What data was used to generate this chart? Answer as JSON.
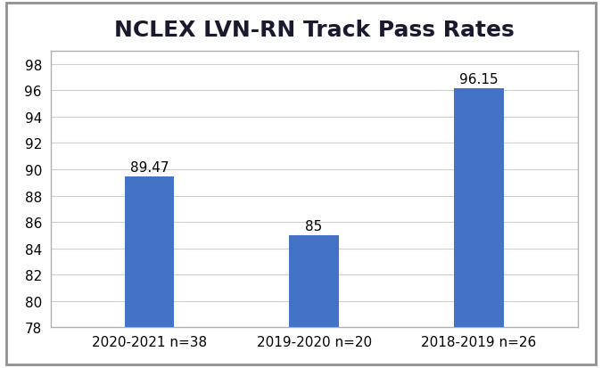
{
  "title": "NCLEX LVN-RN Track Pass Rates",
  "categories": [
    "2020-2021 n=38",
    "2019-2020 n=20",
    "2018-2019 n=26"
  ],
  "values": [
    89.47,
    85,
    96.15
  ],
  "bar_color": "#4472C4",
  "ylim": [
    78,
    99
  ],
  "yticks": [
    78,
    80,
    82,
    84,
    86,
    88,
    90,
    92,
    94,
    96,
    98
  ],
  "title_fontsize": 18,
  "tick_fontsize": 11,
  "label_fontsize": 11,
  "bar_width": 0.3,
  "background_color": "#ffffff",
  "grid_color": "#d0d0d0",
  "border_color": "#808080",
  "value_labels": [
    "89.47",
    "85",
    "96.15"
  ],
  "figsize": [
    6.75,
    4.14
  ],
  "dpi": 100
}
